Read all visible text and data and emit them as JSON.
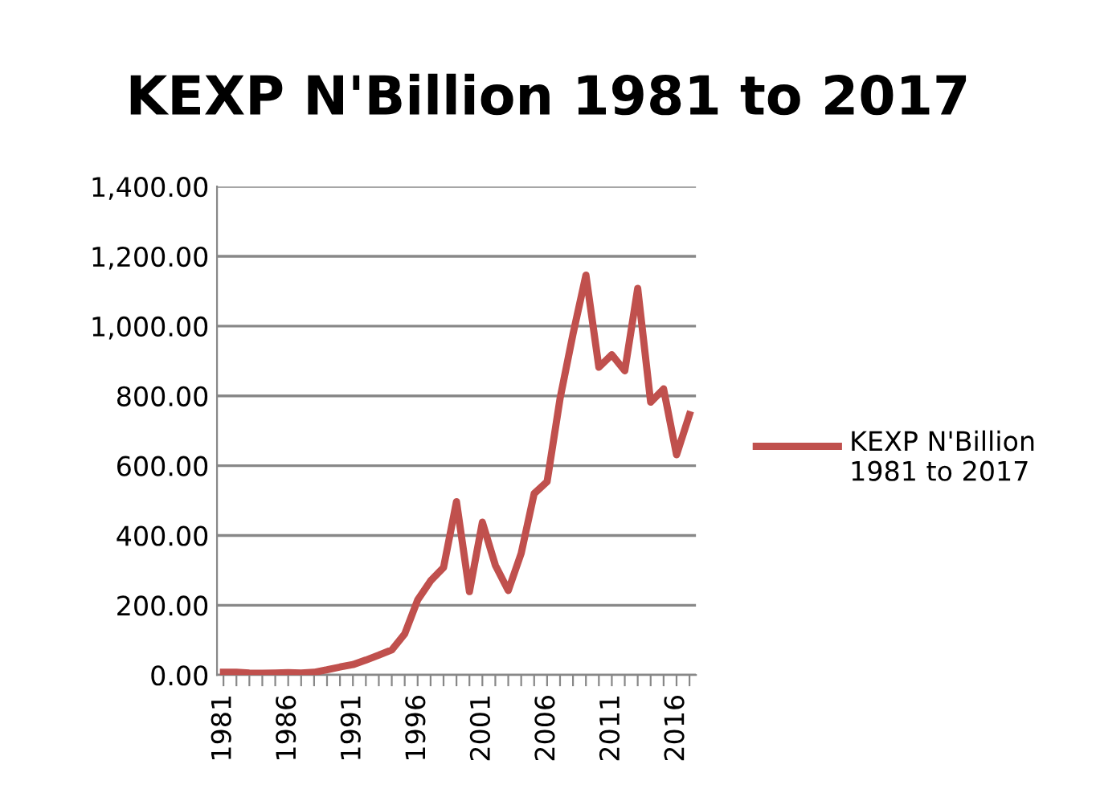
{
  "chart_data": {
    "type": "line",
    "title": "KEXP N'Billion 1981 to 2017",
    "categories": [
      "1981",
      null,
      null,
      null,
      null,
      "1986",
      null,
      null,
      null,
      null,
      "1991",
      null,
      null,
      null,
      null,
      "1996",
      null,
      null,
      null,
      null,
      "2001",
      null,
      null,
      null,
      null,
      "2006",
      null,
      null,
      null,
      null,
      "2011",
      null,
      null,
      null,
      null,
      "2016",
      null
    ],
    "series": [
      {
        "name": "KEXP N'Billion 1981 to 2017",
        "color": "#c0504d",
        "values": [
          8,
          8,
          6,
          5,
          6,
          7,
          6,
          8,
          15,
          23,
          30,
          43,
          57,
          72,
          118,
          215,
          270,
          308,
          497,
          239,
          438,
          315,
          242,
          349,
          520,
          554,
          792,
          977,
          1146,
          882,
          918,
          872,
          1108,
          782,
          820,
          631,
          746
        ]
      }
    ],
    "ylim": [
      0,
      1400
    ],
    "yticks": [
      {
        "value": 0,
        "label": "0.00"
      },
      {
        "value": 200,
        "label": "200.00"
      },
      {
        "value": 400,
        "label": "400.00"
      },
      {
        "value": 600,
        "label": "600.00"
      },
      {
        "value": 800,
        "label": "800.00"
      },
      {
        "value": 1000,
        "label": "1,000.00"
      },
      {
        "value": 1200,
        "label": "1,200.00"
      },
      {
        "value": 1400,
        "label": "1,400.00"
      }
    ],
    "grid": "y",
    "legend": "right",
    "line_style": "solid",
    "marker": "none"
  }
}
